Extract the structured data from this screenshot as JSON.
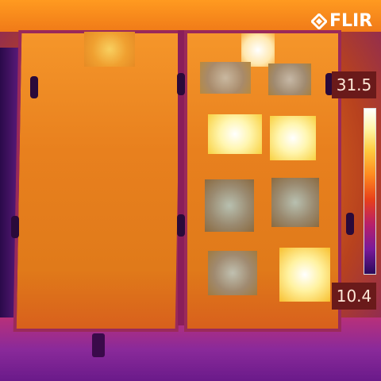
{
  "brand": {
    "logo_text": "FLIR",
    "icon": "flir-diamond-icon"
  },
  "temperature_scale": {
    "max": "31.5",
    "min": "10.4"
  },
  "colors": {
    "hot": "#fff6a8",
    "warm": "#f08a1a",
    "cool": "#7a1f8a",
    "cold": "#2a0a5a"
  }
}
